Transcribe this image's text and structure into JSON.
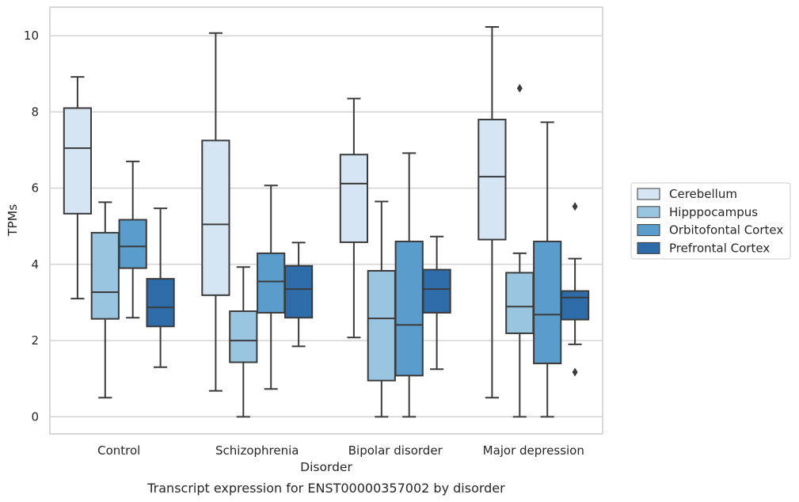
{
  "chart_data": {
    "type": "boxplot",
    "title": "",
    "caption": "Transcript expression for ENST00000357002 by disorder",
    "xlabel": "Disorder",
    "ylabel": "TPMs",
    "ylim": [
      -0.45,
      10.75
    ],
    "yticks": [
      0,
      2,
      4,
      6,
      8,
      10
    ],
    "grid": "horizontal",
    "legend_position": "right",
    "categories": [
      "Control",
      "Schizophrenia",
      "Bipolar disorder",
      "Major depression"
    ],
    "series": [
      {
        "name": "Cerebellum",
        "color": "#d6e5f3",
        "boxes": [
          {
            "whisker_low": 3.1,
            "q1": 5.33,
            "median": 7.05,
            "q3": 8.1,
            "whisker_high": 8.92,
            "outliers": []
          },
          {
            "whisker_low": 0.68,
            "q1": 3.19,
            "median": 5.05,
            "q3": 7.25,
            "whisker_high": 10.07,
            "outliers": []
          },
          {
            "whisker_low": 2.08,
            "q1": 4.58,
            "median": 6.12,
            "q3": 6.88,
            "whisker_high": 8.35,
            "outliers": []
          },
          {
            "whisker_low": 0.5,
            "q1": 4.65,
            "median": 6.3,
            "q3": 7.8,
            "whisker_high": 10.23,
            "outliers": []
          }
        ]
      },
      {
        "name": "Hipppocampus",
        "color": "#9ac5e0",
        "boxes": [
          {
            "whisker_low": 0.5,
            "q1": 2.57,
            "median": 3.27,
            "q3": 4.83,
            "whisker_high": 5.63,
            "outliers": []
          },
          {
            "whisker_low": 0.0,
            "q1": 1.43,
            "median": 2.0,
            "q3": 2.77,
            "whisker_high": 3.93,
            "outliers": []
          },
          {
            "whisker_low": 0.0,
            "q1": 0.95,
            "median": 2.58,
            "q3": 3.83,
            "whisker_high": 5.65,
            "outliers": []
          },
          {
            "whisker_low": 0.0,
            "q1": 2.19,
            "median": 2.89,
            "q3": 3.78,
            "whisker_high": 4.29,
            "outliers": [
              8.62
            ]
          }
        ]
      },
      {
        "name": "Orbitofontal Cortex",
        "color": "#5a9ccb",
        "boxes": [
          {
            "whisker_low": 2.6,
            "q1": 3.9,
            "median": 4.47,
            "q3": 5.17,
            "whisker_high": 6.7,
            "outliers": []
          },
          {
            "whisker_low": 0.73,
            "q1": 2.73,
            "median": 3.55,
            "q3": 4.29,
            "whisker_high": 6.07,
            "outliers": []
          },
          {
            "whisker_low": 0.0,
            "q1": 1.08,
            "median": 2.41,
            "q3": 4.6,
            "whisker_high": 6.92,
            "outliers": []
          },
          {
            "whisker_low": 0.0,
            "q1": 1.4,
            "median": 2.68,
            "q3": 4.6,
            "whisker_high": 7.73,
            "outliers": []
          }
        ]
      },
      {
        "name": "Prefrontal Cortex",
        "color": "#2d6ca8",
        "boxes": [
          {
            "whisker_low": 1.3,
            "q1": 2.37,
            "median": 2.87,
            "q3": 3.62,
            "whisker_high": 5.47,
            "outliers": []
          },
          {
            "whisker_low": 1.85,
            "q1": 2.6,
            "median": 3.35,
            "q3": 3.96,
            "whisker_high": 4.57,
            "outliers": []
          },
          {
            "whisker_low": 1.25,
            "q1": 2.73,
            "median": 3.35,
            "q3": 3.86,
            "whisker_high": 4.73,
            "outliers": []
          },
          {
            "whisker_low": 1.9,
            "q1": 2.55,
            "median": 3.13,
            "q3": 3.3,
            "whisker_high": 4.15,
            "outliers": [
              5.52,
              1.17
            ]
          }
        ]
      }
    ]
  }
}
